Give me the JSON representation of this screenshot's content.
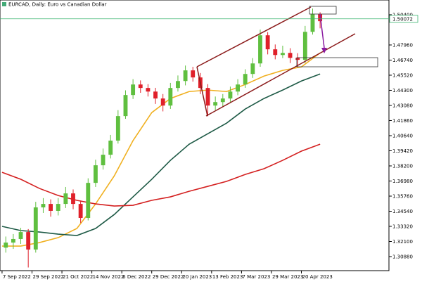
{
  "chart_data": {
    "type": "candlestick",
    "title": "EURCAD, Daily:  Euro vs Canadian Dollar",
    "x": [
      2,
      6,
      10,
      14,
      18,
      22,
      26,
      30,
      34,
      38,
      42,
      46,
      50,
      54,
      58,
      62,
      66,
      70,
      74,
      78,
      82,
      86,
      90,
      94,
      98,
      102,
      106,
      110,
      114,
      118,
      122,
      126,
      130,
      134,
      138,
      142,
      146,
      150,
      154,
      158,
      162,
      166,
      170
    ],
    "open": [
      1.316,
      1.3201,
      1.323,
      1.3286,
      1.3145,
      1.3485,
      1.3513,
      1.3457,
      1.3513,
      1.3598,
      1.3513,
      1.34,
      1.3683,
      1.3825,
      1.391,
      1.4024,
      1.4222,
      1.4392,
      1.4477,
      1.4449,
      1.442,
      1.4364,
      1.4307,
      1.4449,
      1.4505,
      1.4591,
      1.4534,
      1.4449,
      1.4307,
      1.4335,
      1.4364,
      1.442,
      1.4477,
      1.4562,
      1.4647,
      1.4874,
      1.4761,
      1.4715,
      1.4732,
      1.4692,
      1.4676,
      1.4902,
      1.5044
    ],
    "high": [
      1.325,
      1.327,
      1.332,
      1.331,
      1.353,
      1.356,
      1.355,
      1.356,
      1.365,
      1.363,
      1.354,
      1.372,
      1.387,
      1.396,
      1.407,
      1.427,
      1.443,
      1.452,
      1.451,
      1.448,
      1.445,
      1.44,
      1.449,
      1.455,
      1.463,
      1.462,
      1.457,
      1.448,
      1.438,
      1.44,
      1.446,
      1.452,
      1.46,
      1.469,
      1.492,
      1.49,
      1.48,
      1.479,
      1.477,
      1.473,
      1.495,
      1.509,
      1.506
    ],
    "low": [
      1.312,
      1.315,
      1.319,
      1.3,
      1.312,
      1.344,
      1.341,
      1.342,
      1.348,
      1.347,
      1.336,
      1.338,
      1.365,
      1.379,
      1.388,
      1.4,
      1.42,
      1.436,
      1.441,
      1.438,
      1.432,
      1.426,
      1.428,
      1.442,
      1.447,
      1.45,
      1.44,
      1.422,
      1.427,
      1.43,
      1.433,
      1.439,
      1.445,
      1.453,
      1.462,
      1.472,
      1.468,
      1.469,
      1.465,
      1.462,
      1.465,
      1.488,
      1.493
    ],
    "close": [
      1.3201,
      1.323,
      1.3286,
      1.3145,
      1.3485,
      1.3513,
      1.3457,
      1.3513,
      1.3598,
      1.3513,
      1.34,
      1.3683,
      1.3825,
      1.391,
      1.4024,
      1.4222,
      1.4392,
      1.4477,
      1.4449,
      1.442,
      1.4364,
      1.4307,
      1.4449,
      1.4505,
      1.4591,
      1.4534,
      1.4449,
      1.4307,
      1.4335,
      1.4364,
      1.442,
      1.4477,
      1.4562,
      1.4647,
      1.4874,
      1.4761,
      1.4715,
      1.4732,
      1.4692,
      1.4676,
      1.4902,
      1.5044,
      1.4988
    ],
    "up_color": "#5fbf3f",
    "down_color": "#e0202a",
    "series": [
      {
        "color": "#f0b020",
        "x": [
          0,
          10,
          20,
          30,
          40,
          50,
          60,
          70,
          80,
          90,
          100,
          110,
          120,
          130,
          140,
          150,
          160,
          170
        ],
        "values": [
          1.3173,
          1.3173,
          1.3201,
          1.3241,
          1.3315,
          1.3513,
          1.374,
          1.4024,
          1.425,
          1.4364,
          1.442,
          1.4432,
          1.442,
          1.4477,
          1.4545,
          1.4591,
          1.4619,
          1.4732
        ]
      },
      {
        "color": "#1e5a46",
        "x": [
          0,
          10,
          20,
          30,
          40,
          50,
          60,
          70,
          80,
          90,
          100,
          110,
          120,
          130,
          140,
          150,
          160,
          170
        ],
        "values": [
          1.3332,
          1.3298,
          1.3286,
          1.3269,
          1.3258,
          1.3315,
          1.3428,
          1.357,
          1.3712,
          1.3865,
          1.3995,
          1.408,
          1.4165,
          1.4279,
          1.4364,
          1.4432,
          1.4505,
          1.4562
        ]
      },
      {
        "color": "#d42020",
        "x": [
          0,
          10,
          20,
          30,
          40,
          50,
          60,
          70,
          80,
          90,
          100,
          110,
          120,
          130,
          140,
          150,
          160,
          170
        ],
        "values": [
          1.3768,
          1.3712,
          1.3638,
          1.3581,
          1.3542,
          1.3513,
          1.3496,
          1.3502,
          1.3542,
          1.357,
          1.3615,
          1.3655,
          1.3695,
          1.3751,
          1.3797,
          1.3865,
          1.3939,
          1.3995
        ]
      }
    ],
    "current_price": {
      "value": 1.50072,
      "label": "1.50072"
    },
    "xlim": [
      -1.1,
      206.8
    ],
    "ylim": [
      1.29745,
      1.5159
    ],
    "xticks": [
      {
        "value": 0,
        "label": "7 Sep 2022"
      },
      {
        "value": 16,
        "label": "29 Sep 2022"
      },
      {
        "value": 32,
        "label": "21 Oct 2022"
      },
      {
        "value": 48,
        "label": "14 Nov 2022"
      },
      {
        "value": 64,
        "label": "6 Dec 2022"
      },
      {
        "value": 80,
        "label": "29 Dec 2022"
      },
      {
        "value": 96,
        "label": "20 Jan 2023"
      },
      {
        "value": 112,
        "label": "13 Feb 2023"
      },
      {
        "value": 128,
        "label": "7 Mar 2023"
      },
      {
        "value": 144,
        "label": "29 Mar 2023"
      },
      {
        "value": 160,
        "label": "20 Apr 2023"
      }
    ],
    "yticks": [
      {
        "value": 1.3088,
        "label": "1.30880"
      },
      {
        "value": 1.321,
        "label": "1.32100"
      },
      {
        "value": 1.3332,
        "label": "1.33320"
      },
      {
        "value": 1.3454,
        "label": "1.34540"
      },
      {
        "value": 1.3576,
        "label": "1.35760"
      },
      {
        "value": 1.3698,
        "label": "1.36980"
      },
      {
        "value": 1.382,
        "label": "1.38200"
      },
      {
        "value": 1.3942,
        "label": "1.39420"
      },
      {
        "value": 1.4064,
        "label": "1.40640"
      },
      {
        "value": 1.4186,
        "label": "1.41860"
      },
      {
        "value": 1.4308,
        "label": "1.43080"
      },
      {
        "value": 1.443,
        "label": "1.44300"
      },
      {
        "value": 1.4552,
        "label": "1.45520"
      },
      {
        "value": 1.4674,
        "label": "1.46740"
      },
      {
        "value": 1.4796,
        "label": "1.47960"
      },
      {
        "value": 1.504,
        "label": "1.50400"
      }
    ],
    "grid": false
  }
}
